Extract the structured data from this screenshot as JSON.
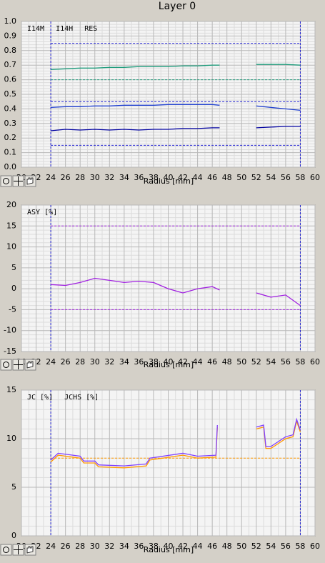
{
  "title": "Layer 0",
  "chart_data": [
    {
      "type": "line",
      "x_label": "Radius [mm]",
      "xlim": [
        20,
        60
      ],
      "xticks": [
        20,
        22,
        24,
        26,
        28,
        30,
        32,
        34,
        36,
        38,
        40,
        42,
        44,
        46,
        48,
        50,
        52,
        54,
        56,
        58,
        60
      ],
      "ylim": [
        0,
        1
      ],
      "yticks": [
        {
          "value": 0,
          "label": "0.0"
        },
        0.1,
        0.2,
        0.3,
        0.4,
        0.5,
        0.6,
        0.7,
        0.8,
        0.9,
        {
          "value": 1,
          "label": "1.0"
        }
      ],
      "grid": true,
      "x": [
        24,
        26,
        28,
        30,
        32,
        34,
        36,
        38,
        40,
        42,
        44,
        46,
        47,
        49.5,
        52,
        54,
        56,
        58
      ],
      "series": [
        {
          "name": "I14M",
          "color": "#1f9c7c",
          "values": [
            0.67,
            0.675,
            0.68,
            0.68,
            0.685,
            0.685,
            0.69,
            0.69,
            0.69,
            0.695,
            0.695,
            0.7,
            0.7,
            null,
            0.705,
            0.705,
            0.705,
            0.7
          ]
        },
        {
          "name": "I14H",
          "color": "#2040d0",
          "values": [
            0.41,
            0.415,
            0.415,
            0.42,
            0.42,
            0.425,
            0.425,
            0.425,
            0.43,
            0.43,
            0.43,
            0.43,
            0.425,
            null,
            0.42,
            0.41,
            0.4,
            0.39
          ]
        },
        {
          "name": "RES",
          "color": "#0000a0",
          "values": [
            0.25,
            0.26,
            0.255,
            0.26,
            0.255,
            0.26,
            0.255,
            0.26,
            0.26,
            0.265,
            0.265,
            0.27,
            0.27,
            null,
            0.27,
            0.275,
            0.28,
            0.28
          ]
        }
      ],
      "reference_lines": [
        {
          "axis": "x",
          "value": 24,
          "color": "#2020d0"
        },
        {
          "axis": "x",
          "value": 58,
          "color": "#2020d0"
        },
        {
          "axis": "y",
          "value": 0.85,
          "color": "#2020d0"
        },
        {
          "axis": "y",
          "value": 0.6,
          "color": "#1f9c7c"
        },
        {
          "axis": "y",
          "value": 0.45,
          "color": "#2020d0"
        },
        {
          "axis": "y",
          "value": 0.15,
          "color": "#2020d0"
        }
      ]
    },
    {
      "type": "line",
      "x_label": "Radius [mm]",
      "xlim": [
        20,
        60
      ],
      "xticks": [
        20,
        22,
        24,
        26,
        28,
        30,
        32,
        34,
        36,
        38,
        40,
        42,
        44,
        46,
        48,
        50,
        52,
        54,
        56,
        58,
        60
      ],
      "ylim": [
        -15,
        20
      ],
      "yticks": [
        -15,
        -10,
        -5,
        0,
        5,
        10,
        15,
        20
      ],
      "grid": true,
      "x": [
        24,
        26,
        28,
        30,
        32,
        34,
        36,
        38,
        40,
        42,
        44,
        46,
        47,
        49.5,
        52,
        54,
        56,
        58
      ],
      "series": [
        {
          "name": "ASY [%]",
          "color": "#a020e0",
          "values": [
            1,
            0.8,
            1.5,
            2.5,
            2,
            1.5,
            1.8,
            1.5,
            0,
            -1,
            0,
            0.5,
            -0.3,
            null,
            -1,
            -2,
            -1.5,
            -4
          ]
        }
      ],
      "reference_lines": [
        {
          "axis": "x",
          "value": 24,
          "color": "#2020d0"
        },
        {
          "axis": "x",
          "value": 58,
          "color": "#2020d0"
        },
        {
          "axis": "y",
          "value": 15,
          "color": "#a020e0"
        },
        {
          "axis": "y",
          "value": -5,
          "color": "#a020e0"
        }
      ]
    },
    {
      "type": "line",
      "x_label": "Radius [mm]",
      "xlim": [
        20,
        60
      ],
      "xticks": [
        20,
        22,
        24,
        26,
        28,
        30,
        32,
        34,
        36,
        38,
        40,
        42,
        44,
        46,
        48,
        50,
        52,
        54,
        56,
        58,
        60
      ],
      "ylim": [
        0,
        15
      ],
      "yticks": [
        0,
        5,
        10,
        15
      ],
      "grid": true,
      "x": [
        24,
        25,
        28,
        28.5,
        30,
        30.5,
        34,
        37,
        37.5,
        42,
        44,
        46.5,
        46.7,
        49.5,
        52,
        53,
        53.3,
        54,
        56,
        57,
        57.5,
        58
      ],
      "series": [
        {
          "name": "JC [%]",
          "color": "#ff9900",
          "values": [
            7.6,
            8.3,
            8,
            7.5,
            7.5,
            7.1,
            7,
            7.2,
            7.8,
            8.3,
            8,
            8.1,
            11.2,
            null,
            11,
            11.2,
            9,
            9,
            10,
            10.2,
            11.8,
            10.7
          ]
        },
        {
          "name": "JCHS [%]",
          "color": "#8040ff",
          "values": [
            7.8,
            8.5,
            8.2,
            7.7,
            7.7,
            7.3,
            7.2,
            7.4,
            8,
            8.5,
            8.2,
            8.3,
            11.4,
            null,
            11.2,
            11.4,
            9.2,
            9.2,
            10.2,
            10.4,
            12,
            10.9
          ]
        }
      ],
      "reference_lines": [
        {
          "axis": "x",
          "value": 24,
          "color": "#2020d0"
        },
        {
          "axis": "x",
          "value": 58,
          "color": "#2020d0"
        },
        {
          "axis": "y",
          "value": 8,
          "color": "#ff9900"
        }
      ]
    }
  ]
}
